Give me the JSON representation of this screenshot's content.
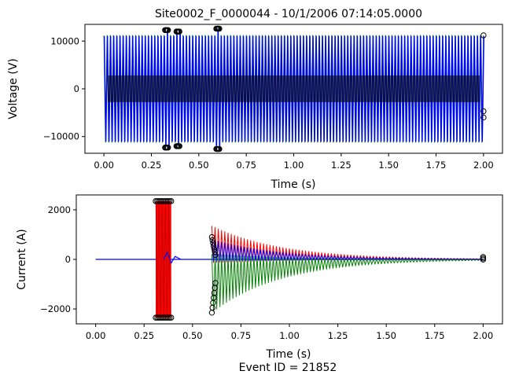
{
  "figure": {
    "title": "Site0002_F_0000044 - 10/1/2006 07:14:05.0000",
    "footer": "Event ID = 21852"
  },
  "chart_data": [
    {
      "type": "line",
      "title": "Site0002_F_0000044 - 10/1/2006 07:14:05.0000",
      "xlabel": "Time (s)",
      "ylabel": "Voltage (V)",
      "xlim": [
        -0.1,
        2.1
      ],
      "ylim": [
        -13500,
        13500
      ],
      "xticks": [
        0.0,
        0.25,
        0.5,
        0.75,
        1.0,
        1.25,
        1.5,
        1.75,
        2.0
      ],
      "xtick_labels": [
        "0.00",
        "0.25",
        "0.50",
        "0.75",
        "1.00",
        "1.25",
        "1.50",
        "1.75",
        "2.00"
      ],
      "yticks": [
        10000,
        0,
        -10000
      ],
      "ytick_labels": [
        "10000",
        "0",
        "−10000"
      ],
      "grid": false,
      "legend": "none",
      "colors": {
        "phase_a": "#ff0000",
        "phase_b": "#008000",
        "phase_c": "#0000ff",
        "markers": "#000000"
      },
      "series_envelope": {
        "amplitude": 11200,
        "frequency_hz": 60,
        "transients": [
          {
            "t": 0.33,
            "peak": 12300
          },
          {
            "t": 0.39,
            "peak": 12000
          },
          {
            "t": 0.6,
            "peak": 12600
          }
        ],
        "end_markers": [
          {
            "x": 2.0,
            "y": 11200
          },
          {
            "x": 2.0,
            "y": -4700
          },
          {
            "x": 2.0,
            "y": -6000
          }
        ]
      }
    },
    {
      "type": "line",
      "xlabel": "Time (s)",
      "ylabel": "Current (A)",
      "xlim": [
        -0.1,
        2.1
      ],
      "ylim": [
        -2600,
        2600
      ],
      "xticks": [
        0.0,
        0.25,
        0.5,
        0.75,
        1.0,
        1.25,
        1.5,
        1.75,
        2.0
      ],
      "xtick_labels": [
        "0.00",
        "0.25",
        "0.50",
        "0.75",
        "1.00",
        "1.25",
        "1.50",
        "1.75",
        "2.00"
      ],
      "yticks": [
        2000,
        0,
        -2000
      ],
      "ytick_labels": [
        "2000",
        "0",
        "−2000"
      ],
      "grid": false,
      "legend": "none",
      "colors": {
        "phase_a": "#ff0000",
        "phase_b": "#008000",
        "phase_c": "#0000ff",
        "markers": "#000000"
      },
      "series_envelope": {
        "fault_window": [
          0.31,
          0.39
        ],
        "fault_peak": 2350,
        "decay_start": 0.6,
        "decay_peak_red": 1350,
        "decay_peak_green": -2150,
        "decay_peak_blue": 800,
        "decay_tau_s": 0.35,
        "end_markers": [
          {
            "x": 2.0,
            "y": 100
          },
          {
            "x": 2.0,
            "y": 40
          },
          {
            "x": 2.0,
            "y": -10
          }
        ]
      }
    }
  ]
}
